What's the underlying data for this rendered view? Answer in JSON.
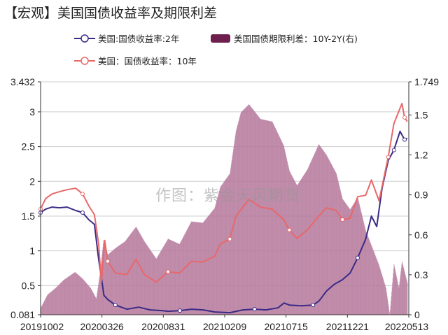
{
  "title": "【宏观】美国国债收益率及期限利差",
  "watermark": "作图：紫金天风期货",
  "colors": {
    "line_2y": "#3b2a86",
    "line_10y": "#e8686a",
    "area_spread": "#b57a9c",
    "area_spread_legend": "#6e1f4d"
  },
  "chart_data": {
    "type": "line",
    "title": "【宏观】美国国债收益率及期限利差",
    "x_tick_labels": [
      "20191002",
      "20200326",
      "20200831",
      "20210209",
      "20210715",
      "20211221",
      "20220513"
    ],
    "y_left": {
      "range": [
        0.081,
        3.432
      ],
      "ticks": [
        "0.081",
        "0.5",
        "1",
        "1.5",
        "2",
        "2.5",
        "3",
        "3.432"
      ]
    },
    "y_right": {
      "range": [
        0,
        1.749
      ],
      "ticks": [
        "0",
        "0.3",
        "0.6",
        "0.9",
        "1.2",
        "1.5",
        "1.749"
      ]
    },
    "legend_placement": "top",
    "grid": true,
    "series": [
      {
        "name": "美国:国债收益率:2年",
        "axis": "left",
        "kind": "line",
        "points": [
          [
            "2019-10-02",
            1.55
          ],
          [
            "2019-10-15",
            1.6
          ],
          [
            "2019-11-01",
            1.63
          ],
          [
            "2019-11-20",
            1.62
          ],
          [
            "2019-12-10",
            1.63
          ],
          [
            "2020-01-02",
            1.58
          ],
          [
            "2020-01-20",
            1.55
          ],
          [
            "2020-02-05",
            1.45
          ],
          [
            "2020-02-20",
            1.38
          ],
          [
            "2020-03-02",
            0.88
          ],
          [
            "2020-03-16",
            0.36
          ],
          [
            "2020-03-26",
            0.3
          ],
          [
            "2020-04-15",
            0.22
          ],
          [
            "2020-05-15",
            0.16
          ],
          [
            "2020-06-15",
            0.19
          ],
          [
            "2020-07-15",
            0.15
          ],
          [
            "2020-08-15",
            0.14
          ],
          [
            "2020-08-31",
            0.13
          ],
          [
            "2020-10-01",
            0.14
          ],
          [
            "2020-11-01",
            0.16
          ],
          [
            "2020-12-01",
            0.15
          ],
          [
            "2021-01-01",
            0.12
          ],
          [
            "2021-02-09",
            0.11
          ],
          [
            "2021-03-15",
            0.15
          ],
          [
            "2021-04-15",
            0.16
          ],
          [
            "2021-05-15",
            0.15
          ],
          [
            "2021-06-15",
            0.18
          ],
          [
            "2021-07-01",
            0.25
          ],
          [
            "2021-07-15",
            0.22
          ],
          [
            "2021-08-15",
            0.21
          ],
          [
            "2021-09-15",
            0.22
          ],
          [
            "2021-10-01",
            0.28
          ],
          [
            "2021-10-20",
            0.42
          ],
          [
            "2021-11-10",
            0.52
          ],
          [
            "2021-11-30",
            0.58
          ],
          [
            "2021-12-21",
            0.68
          ],
          [
            "2022-01-10",
            0.9
          ],
          [
            "2022-01-31",
            1.17
          ],
          [
            "2022-02-15",
            1.5
          ],
          [
            "2022-03-01",
            1.35
          ],
          [
            "2022-03-15",
            1.9
          ],
          [
            "2022-03-31",
            2.3
          ],
          [
            "2022-04-15",
            2.45
          ],
          [
            "2022-05-01",
            2.72
          ],
          [
            "2022-05-13",
            2.6
          ],
          [
            "2022-05-20",
            2.62
          ]
        ]
      },
      {
        "name": "美国：国债收益率：10年",
        "axis": "left",
        "kind": "line",
        "points": [
          [
            "2019-10-02",
            1.6
          ],
          [
            "2019-10-15",
            1.75
          ],
          [
            "2019-11-01",
            1.82
          ],
          [
            "2019-11-20",
            1.85
          ],
          [
            "2019-12-10",
            1.88
          ],
          [
            "2020-01-02",
            1.9
          ],
          [
            "2020-01-20",
            1.82
          ],
          [
            "2020-02-05",
            1.65
          ],
          [
            "2020-02-20",
            1.52
          ],
          [
            "2020-03-02",
            1.1
          ],
          [
            "2020-03-09",
            0.55
          ],
          [
            "2020-03-18",
            1.15
          ],
          [
            "2020-03-26",
            0.85
          ],
          [
            "2020-04-15",
            0.68
          ],
          [
            "2020-05-15",
            0.66
          ],
          [
            "2020-06-08",
            0.88
          ],
          [
            "2020-06-30",
            0.66
          ],
          [
            "2020-07-31",
            0.55
          ],
          [
            "2020-08-31",
            0.7
          ],
          [
            "2020-09-30",
            0.68
          ],
          [
            "2020-10-31",
            0.85
          ],
          [
            "2020-11-30",
            0.84
          ],
          [
            "2020-12-31",
            0.92
          ],
          [
            "2021-01-15",
            1.1
          ],
          [
            "2021-02-09",
            1.17
          ],
          [
            "2021-02-25",
            1.5
          ],
          [
            "2021-03-31",
            1.74
          ],
          [
            "2021-04-30",
            1.63
          ],
          [
            "2021-05-31",
            1.6
          ],
          [
            "2021-06-30",
            1.45
          ],
          [
            "2021-07-15",
            1.3
          ],
          [
            "2021-08-04",
            1.18
          ],
          [
            "2021-08-31",
            1.3
          ],
          [
            "2021-09-30",
            1.5
          ],
          [
            "2021-10-20",
            1.62
          ],
          [
            "2021-11-15",
            1.58
          ],
          [
            "2021-12-01",
            1.45
          ],
          [
            "2021-12-21",
            1.47
          ],
          [
            "2022-01-10",
            1.78
          ],
          [
            "2022-01-31",
            1.8
          ],
          [
            "2022-02-15",
            2.02
          ],
          [
            "2022-03-07",
            1.72
          ],
          [
            "2022-03-31",
            2.35
          ],
          [
            "2022-04-15",
            2.83
          ],
          [
            "2022-05-06",
            3.12
          ],
          [
            "2022-05-13",
            2.92
          ],
          [
            "2022-05-20",
            2.86
          ]
        ]
      },
      {
        "name": "美国国债期限利差：10Y-2Y(右)",
        "axis": "right",
        "kind": "area",
        "points": [
          [
            "2019-10-02",
            0.05
          ],
          [
            "2019-10-20",
            0.15
          ],
          [
            "2019-11-10",
            0.2
          ],
          [
            "2019-12-01",
            0.26
          ],
          [
            "2019-12-31",
            0.32
          ],
          [
            "2020-01-20",
            0.27
          ],
          [
            "2020-02-10",
            0.2
          ],
          [
            "2020-02-25",
            0.12
          ],
          [
            "2020-03-05",
            0.3
          ],
          [
            "2020-03-15",
            0.56
          ],
          [
            "2020-03-26",
            0.45
          ],
          [
            "2020-04-15",
            0.5
          ],
          [
            "2020-05-10",
            0.55
          ],
          [
            "2020-06-08",
            0.66
          ],
          [
            "2020-06-30",
            0.55
          ],
          [
            "2020-07-31",
            0.42
          ],
          [
            "2020-08-31",
            0.57
          ],
          [
            "2020-09-30",
            0.53
          ],
          [
            "2020-10-31",
            0.7
          ],
          [
            "2020-11-30",
            0.69
          ],
          [
            "2020-12-31",
            0.8
          ],
          [
            "2021-01-15",
            0.96
          ],
          [
            "2021-02-09",
            1.06
          ],
          [
            "2021-02-25",
            1.38
          ],
          [
            "2021-03-10",
            1.52
          ],
          [
            "2021-03-31",
            1.58
          ],
          [
            "2021-04-30",
            1.47
          ],
          [
            "2021-05-31",
            1.45
          ],
          [
            "2021-06-30",
            1.27
          ],
          [
            "2021-07-15",
            1.08
          ],
          [
            "2021-08-04",
            0.97
          ],
          [
            "2021-08-31",
            1.09
          ],
          [
            "2021-09-30",
            1.28
          ],
          [
            "2021-10-20",
            1.2
          ],
          [
            "2021-11-15",
            1.06
          ],
          [
            "2021-12-01",
            0.87
          ],
          [
            "2021-12-21",
            0.79
          ],
          [
            "2022-01-10",
            0.88
          ],
          [
            "2022-01-31",
            0.63
          ],
          [
            "2022-02-15",
            0.52
          ],
          [
            "2022-03-07",
            0.37
          ],
          [
            "2022-03-25",
            0.2
          ],
          [
            "2022-04-04",
            0.0
          ],
          [
            "2022-04-15",
            0.38
          ],
          [
            "2022-04-28",
            0.2
          ],
          [
            "2022-05-06",
            0.4
          ],
          [
            "2022-05-13",
            0.32
          ],
          [
            "2022-05-20",
            0.24
          ]
        ]
      }
    ]
  }
}
